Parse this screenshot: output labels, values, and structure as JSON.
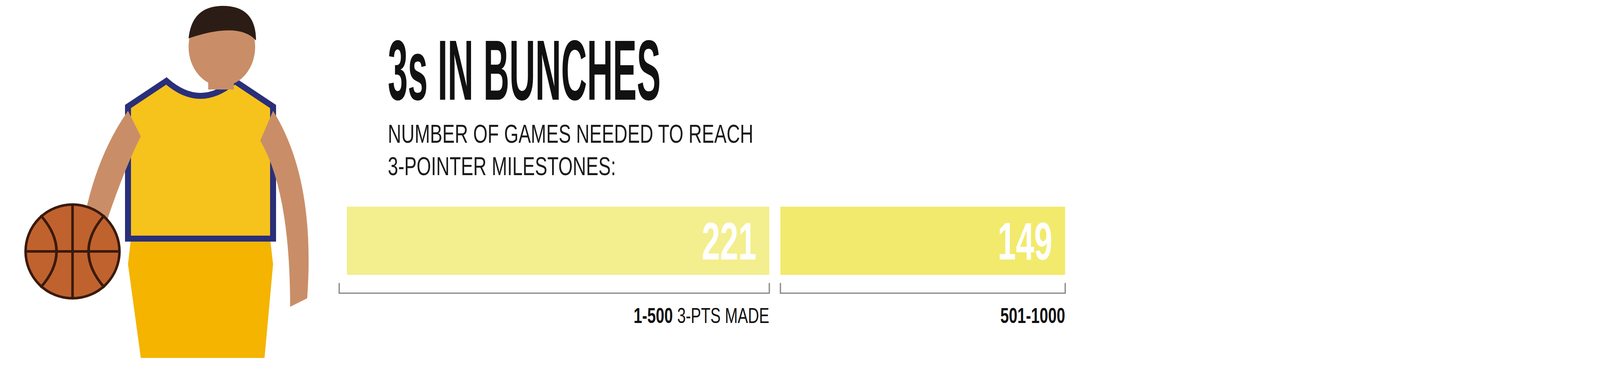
{
  "chart_data": {
    "type": "bar",
    "orientation": "horizontal",
    "stacked": true,
    "data_labels": true,
    "tick_labels": false,
    "title": "3s IN BUNCHES",
    "subtitle": "NUMBER OF GAMES NEEDED TO REACH 3-POINTER MILESTONES:",
    "categories": [
      "1-500 3-PTS MADE",
      "501-1000"
    ],
    "values": [
      221,
      149
    ],
    "colors": [
      "#f3ee8e",
      "#f2ea6c"
    ],
    "xlim": [
      0,
      370
    ]
  }
}
